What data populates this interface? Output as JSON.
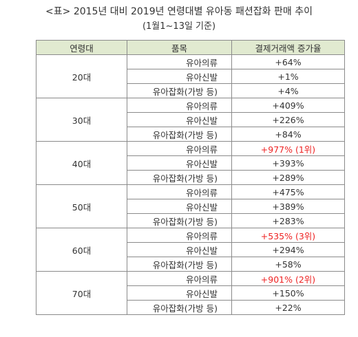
{
  "title": "<표> 2015년 대비 2019년 연령대별 유아동 패션잡화 판매 추이",
  "subtitle": "(1월1~13일 기준)",
  "headers": [
    "연령대",
    "품목",
    "결제거래액 증가율"
  ],
  "groups": [
    {
      "age": "20대",
      "rows": [
        {
          "item": "유아의류",
          "value": "+64%",
          "highlight": false
        },
        {
          "item": "유아신발",
          "value": "+1%",
          "highlight": false
        },
        {
          "item": "유아잡화(가방 등)",
          "value": "+4%",
          "highlight": false
        }
      ]
    },
    {
      "age": "30대",
      "rows": [
        {
          "item": "유아의류",
          "value": "+409%",
          "highlight": false
        },
        {
          "item": "유아신발",
          "value": "+226%",
          "highlight": false
        },
        {
          "item": "유아잡화(가방 등)",
          "value": "+84%",
          "highlight": false
        }
      ]
    },
    {
      "age": "40대",
      "rows": [
        {
          "item": "유아의류",
          "value": "+977% (1위)",
          "highlight": true
        },
        {
          "item": "유아신발",
          "value": "+393%",
          "highlight": false
        },
        {
          "item": "유아잡화(가방 등)",
          "value": "+289%",
          "highlight": false
        }
      ]
    },
    {
      "age": "50대",
      "rows": [
        {
          "item": "유아의류",
          "value": "+475%",
          "highlight": false
        },
        {
          "item": "유아신발",
          "value": "+389%",
          "highlight": false
        },
        {
          "item": "유아잡화(가방 등)",
          "value": "+283%",
          "highlight": false
        }
      ]
    },
    {
      "age": "60대",
      "rows": [
        {
          "item": "유아의류",
          "value": "+535% (3위)",
          "highlight": true
        },
        {
          "item": "유아신발",
          "value": "+294%",
          "highlight": false
        },
        {
          "item": "유아잡화(가방 등)",
          "value": "+58%",
          "highlight": false
        }
      ]
    },
    {
      "age": "70대",
      "rows": [
        {
          "item": "유아의류",
          "value": "+901% (2위)",
          "highlight": true
        },
        {
          "item": "유아신발",
          "value": "+150%",
          "highlight": false
        },
        {
          "item": "유아잡화(가방 등)",
          "value": "+22%",
          "highlight": false
        }
      ]
    }
  ],
  "colors": {
    "header_bg": "#e1ead0",
    "highlight": "#ee2222",
    "border": "#8a8a8a"
  }
}
